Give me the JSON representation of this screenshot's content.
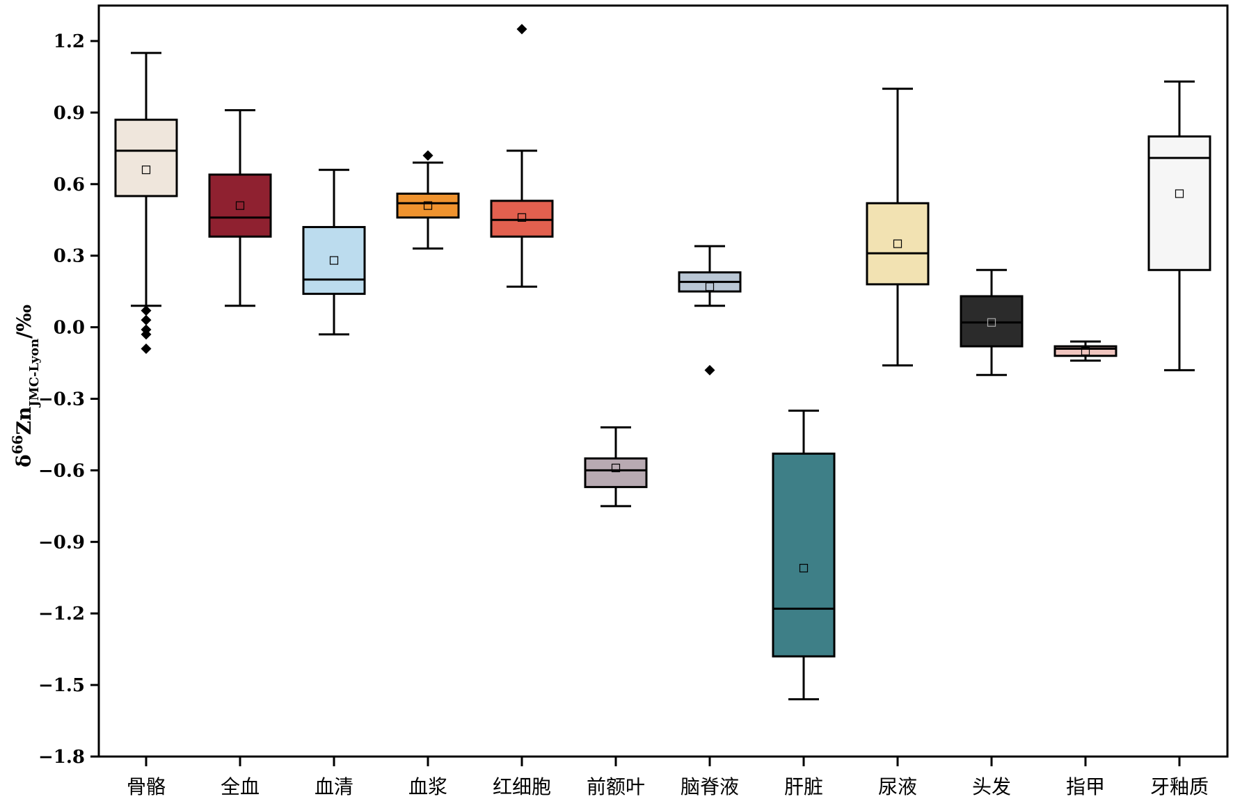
{
  "chart_data": {
    "type": "box",
    "ylabel": {
      "base": "δ",
      "sup": "66",
      "element": "Zn",
      "sub": "JMC-Lyon",
      "unit": "/‰"
    },
    "ylim": [
      -1.8,
      1.35
    ],
    "yticks": [
      "1.2",
      "0.9",
      "0.6",
      "0.3",
      "0.0",
      "−0.3",
      "−0.6",
      "−0.9",
      "−1.2",
      "−1.5",
      "−1.8"
    ],
    "ytick_values": [
      1.2,
      0.9,
      0.6,
      0.3,
      0.0,
      -0.3,
      -0.6,
      -0.9,
      -1.2,
      -1.5,
      -1.8
    ],
    "grid": false,
    "legend": "none",
    "categories": [
      "骨骼",
      "全血",
      "血清",
      "血浆",
      "红细胞",
      "前额叶",
      "脑脊液",
      "肝脏",
      "尿液",
      "头发",
      "指甲",
      "牙釉质"
    ],
    "boxes": [
      {
        "whisker_low": 0.09,
        "q1": 0.55,
        "median": 0.74,
        "q3": 0.87,
        "whisker_high": 1.15,
        "mean": 0.66,
        "outliers": [
          0.07,
          0.03,
          -0.01,
          -0.03,
          -0.09
        ],
        "color": "#efe6dc"
      },
      {
        "whisker_low": 0.09,
        "q1": 0.38,
        "median": 0.46,
        "q3": 0.64,
        "whisker_high": 0.91,
        "mean": 0.51,
        "outliers": [],
        "color": "#8f2130"
      },
      {
        "whisker_low": -0.03,
        "q1": 0.14,
        "median": 0.2,
        "q3": 0.42,
        "whisker_high": 0.66,
        "mean": 0.28,
        "outliers": [],
        "color": "#bcdcee"
      },
      {
        "whisker_low": 0.33,
        "q1": 0.46,
        "median": 0.52,
        "q3": 0.56,
        "whisker_high": 0.69,
        "mean": 0.51,
        "outliers": [
          0.72
        ],
        "color": "#ef932f"
      },
      {
        "whisker_low": 0.17,
        "q1": 0.38,
        "median": 0.45,
        "q3": 0.53,
        "whisker_high": 0.74,
        "mean": 0.46,
        "outliers": [
          1.25
        ],
        "color": "#e2604f"
      },
      {
        "whisker_low": -0.75,
        "q1": -0.67,
        "median": -0.6,
        "q3": -0.55,
        "whisker_high": -0.42,
        "mean": -0.59,
        "outliers": [],
        "color": "#b8aab2"
      },
      {
        "whisker_low": 0.09,
        "q1": 0.15,
        "median": 0.19,
        "q3": 0.23,
        "whisker_high": 0.34,
        "mean": 0.17,
        "outliers": [
          -0.18
        ],
        "color": "#bac7d5"
      },
      {
        "whisker_low": -1.56,
        "q1": -1.38,
        "median": -1.18,
        "q3": -0.53,
        "whisker_high": -0.35,
        "mean": -1.01,
        "outliers": [],
        "color": "#3e7f87"
      },
      {
        "whisker_low": -0.16,
        "q1": 0.18,
        "median": 0.31,
        "q3": 0.52,
        "whisker_high": 1.0,
        "mean": 0.35,
        "outliers": [],
        "color": "#f2e2b2"
      },
      {
        "whisker_low": -0.2,
        "q1": -0.08,
        "median": 0.02,
        "q3": 0.13,
        "whisker_high": 0.24,
        "mean": 0.02,
        "outliers": [],
        "color": "#2b2b2b"
      },
      {
        "whisker_low": -0.14,
        "q1": -0.12,
        "median": -0.09,
        "q3": -0.08,
        "whisker_high": -0.06,
        "mean": -0.1,
        "outliers": [],
        "color": "#f0c5bf"
      },
      {
        "whisker_low": -0.18,
        "q1": 0.24,
        "median": 0.71,
        "q3": 0.8,
        "whisker_high": 1.03,
        "mean": 0.56,
        "outliers": [],
        "color": "#f6f6f6"
      }
    ]
  }
}
